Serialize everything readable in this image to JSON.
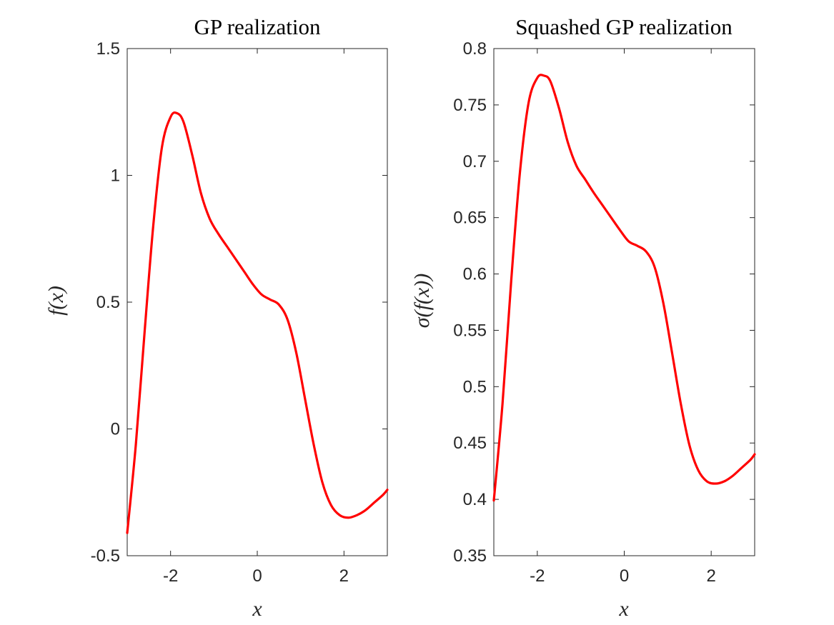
{
  "chart_data": [
    {
      "type": "line",
      "title": "GP realization",
      "xlabel": "x",
      "ylabel": "f(x)",
      "xlim": [
        -3,
        3
      ],
      "ylim": [
        -0.5,
        1.5
      ],
      "xticks": [
        -2,
        0,
        2
      ],
      "yticks": [
        -0.5,
        0,
        0.5,
        1,
        1.5
      ],
      "xtick_labels": [
        "-2",
        "0",
        "2"
      ],
      "ytick_labels": [
        "-0.5",
        "0",
        "0.5",
        "1",
        "1.5"
      ],
      "grid": false,
      "color": "#ff0000",
      "series": [
        {
          "x": [
            -3.0,
            -2.8,
            -2.6,
            -2.4,
            -2.2,
            -2.0,
            -1.85,
            -1.7,
            -1.5,
            -1.3,
            -1.1,
            -0.9,
            -0.7,
            -0.5,
            -0.3,
            -0.1,
            0.1,
            0.3,
            0.5,
            0.7,
            0.9,
            1.1,
            1.3,
            1.5,
            1.7,
            1.9,
            2.1,
            2.3,
            2.5,
            2.7,
            2.9,
            3.0
          ],
          "y": [
            -0.41,
            -0.06,
            0.38,
            0.8,
            1.11,
            1.23,
            1.245,
            1.21,
            1.08,
            0.93,
            0.83,
            0.77,
            0.72,
            0.67,
            0.62,
            0.57,
            0.53,
            0.51,
            0.49,
            0.43,
            0.3,
            0.12,
            -0.06,
            -0.21,
            -0.3,
            -0.34,
            -0.35,
            -0.34,
            -0.32,
            -0.29,
            -0.26,
            -0.24
          ]
        }
      ]
    },
    {
      "type": "line",
      "title": "Squashed GP realization",
      "xlabel": "x",
      "ylabel": "σ(f(x))",
      "xlim": [
        -3,
        3
      ],
      "ylim": [
        0.35,
        0.8
      ],
      "xticks": [
        -2,
        0,
        2
      ],
      "yticks": [
        0.35,
        0.4,
        0.45,
        0.5,
        0.55,
        0.6,
        0.65,
        0.7,
        0.75,
        0.8
      ],
      "xtick_labels": [
        "-2",
        "0",
        "2"
      ],
      "ytick_labels": [
        "0.35",
        "0.4",
        "0.45",
        "0.5",
        "0.55",
        "0.6",
        "0.65",
        "0.7",
        "0.75",
        "0.8"
      ],
      "grid": false,
      "color": "#ff0000",
      "series": [
        {
          "x": [
            -3.0,
            -2.8,
            -2.6,
            -2.4,
            -2.2,
            -2.0,
            -1.85,
            -1.7,
            -1.5,
            -1.3,
            -1.1,
            -0.9,
            -0.7,
            -0.5,
            -0.3,
            -0.1,
            0.1,
            0.3,
            0.5,
            0.7,
            0.9,
            1.1,
            1.3,
            1.5,
            1.7,
            1.9,
            2.1,
            2.3,
            2.5,
            2.7,
            2.9,
            3.0
          ],
          "y": [
            0.399,
            0.485,
            0.594,
            0.69,
            0.752,
            0.774,
            0.776,
            0.771,
            0.747,
            0.717,
            0.696,
            0.684,
            0.672,
            0.661,
            0.65,
            0.639,
            0.629,
            0.625,
            0.62,
            0.606,
            0.574,
            0.53,
            0.485,
            0.448,
            0.426,
            0.416,
            0.414,
            0.416,
            0.421,
            0.428,
            0.435,
            0.44
          ]
        }
      ]
    }
  ]
}
